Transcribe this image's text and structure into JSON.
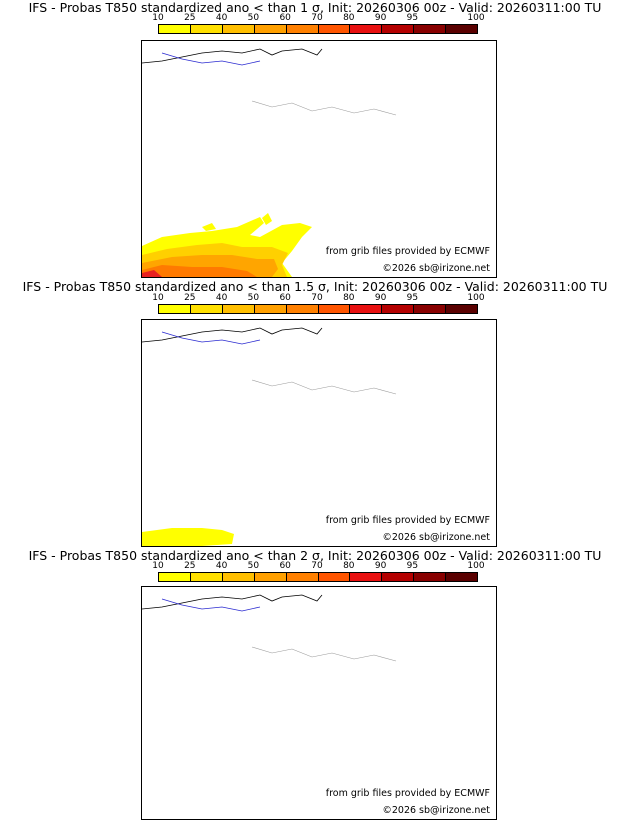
{
  "legend": {
    "labels": [
      "10",
      "25",
      "40",
      "50",
      "60",
      "70",
      "80",
      "90",
      "95",
      "100"
    ],
    "colors": [
      "#ffff00",
      "#ffe000",
      "#ffbf00",
      "#ffa000",
      "#ff8000",
      "#ff5500",
      "#e81010",
      "#b40000",
      "#880000",
      "#5a0000"
    ]
  },
  "panels": [
    {
      "title": "IFS - Probas T850  standardized ano < than 1 σ, Init: 20260306 00z - Valid: 20260311:00 TU",
      "source": "from grib files provided by ECMWF",
      "copyright": "©2026 sb@irizone.net"
    },
    {
      "title": "IFS - Probas T850  standardized ano < than 1.5 σ, Init: 20260306 00z - Valid: 20260311:00 TU",
      "source": "from grib files provided by ECMWF",
      "copyright": "©2026 sb@irizone.net"
    },
    {
      "title": "IFS - Probas T850  standardized ano < than 2 σ, Init: 20260306 00z - Valid: 20260311:00 TU",
      "source": "from grib files provided by ECMWF",
      "copyright": "©2026 sb@irizone.net"
    }
  ]
}
